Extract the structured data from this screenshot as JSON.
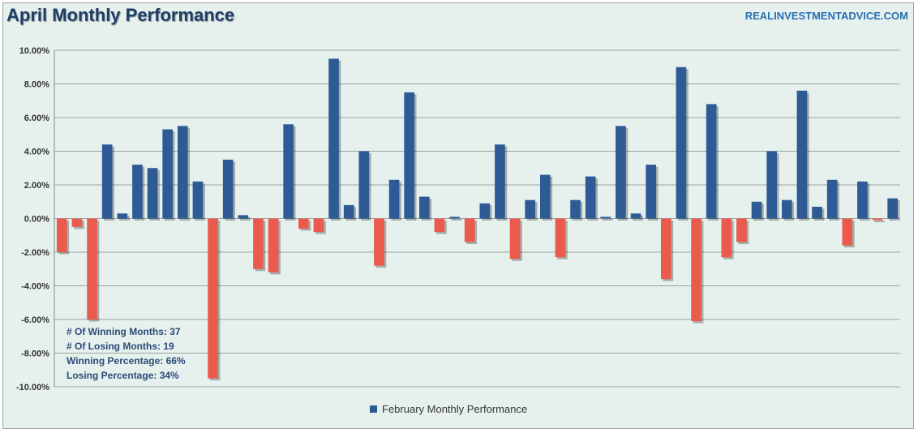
{
  "header": {
    "title": "April Monthly Performance",
    "brand": "REALINVESTMENTADVICE.COM"
  },
  "stats": {
    "winning_months": "# Of Winning Months: 37",
    "losing_months": "# Of Losing Months: 19",
    "winning_pct": "Winning Percentage: 66%",
    "losing_pct": "Losing Percentage: 34%"
  },
  "legend": {
    "label": "February Monthly Performance"
  },
  "colors": {
    "positive": "#2e5b96",
    "negative": "#ea5b4d",
    "grid": "#9aa3a0",
    "background": "#e6f1ee"
  },
  "chart_data": {
    "type": "bar",
    "title": "April Monthly Performance",
    "ylim": [
      -10,
      10
    ],
    "yticks": [
      "10.00%",
      "8.00%",
      "6.00%",
      "4.00%",
      "2.00%",
      "0.00%",
      "-2.00%",
      "-4.00%",
      "-6.00%",
      "-8.00%",
      "-10.00%"
    ],
    "series": [
      {
        "name": "February Monthly Performance",
        "values": [
          -2.0,
          -0.5,
          -6.0,
          4.4,
          0.3,
          3.2,
          3.0,
          5.3,
          5.5,
          2.2,
          -9.5,
          3.5,
          0.2,
          -3.0,
          -3.2,
          5.6,
          -0.6,
          -0.8,
          9.5,
          0.8,
          4.0,
          -2.8,
          2.3,
          7.5,
          1.3,
          -0.8,
          0.1,
          -1.4,
          0.9,
          4.4,
          -2.4,
          1.1,
          2.6,
          -2.3,
          1.1,
          2.5,
          0.1,
          5.5,
          0.3,
          3.2,
          -3.6,
          9.0,
          -6.1,
          6.8,
          -2.3,
          -1.4,
          1.0,
          4.0,
          1.1,
          7.6,
          0.7,
          2.3,
          -1.6,
          2.2,
          -0.1,
          1.2
        ]
      }
    ]
  }
}
